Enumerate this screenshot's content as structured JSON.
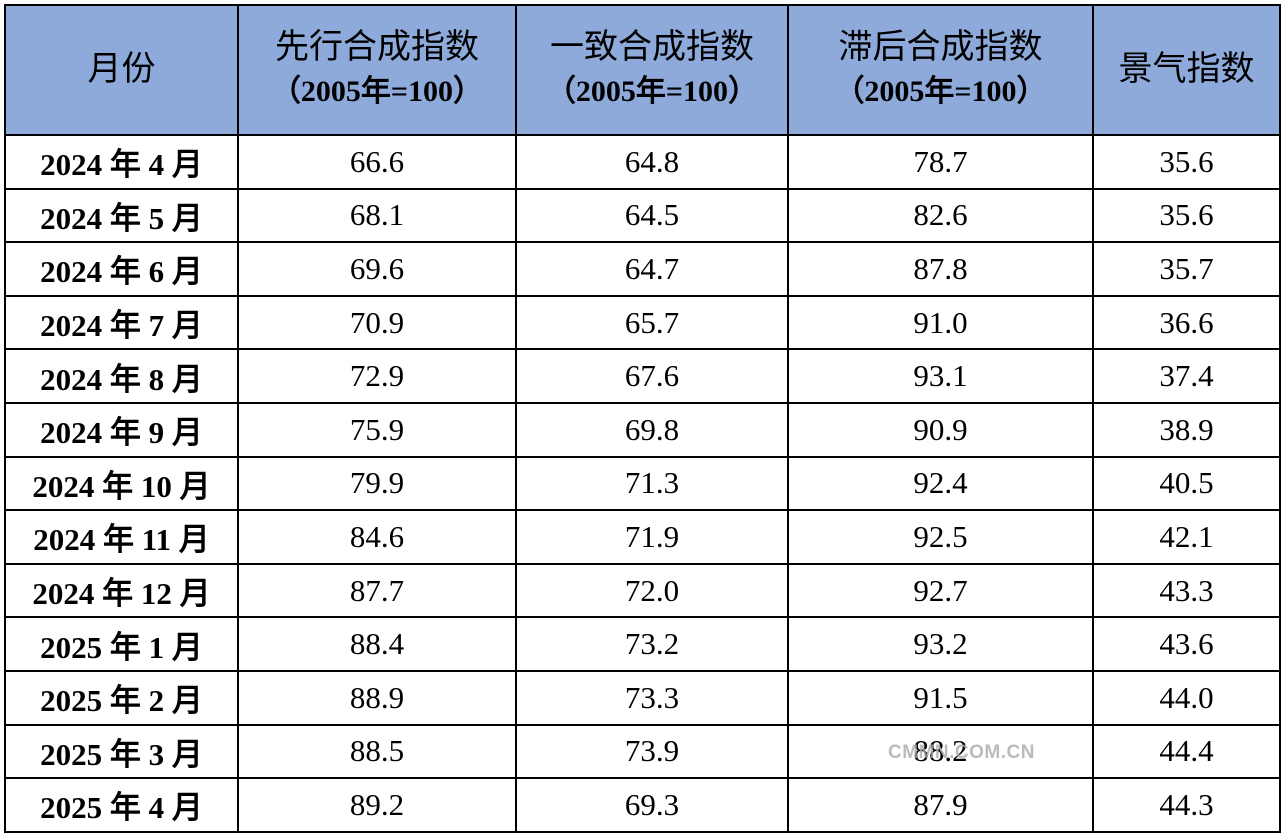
{
  "table": {
    "header": [
      [
        "月份"
      ],
      [
        "先行合成指数",
        "（2005年=100）"
      ],
      [
        "一致合成指数",
        "（2005年=100）"
      ],
      [
        "滞后合成指数",
        "（2005年=100）"
      ],
      [
        "景气指数"
      ]
    ],
    "rows": [
      [
        "2024 年 4 月",
        "66.6",
        "64.8",
        "78.7",
        "35.6"
      ],
      [
        "2024 年 5 月",
        "68.1",
        "64.5",
        "82.6",
        "35.6"
      ],
      [
        "2024 年 6 月",
        "69.6",
        "64.7",
        "87.8",
        "35.7"
      ],
      [
        "2024 年 7 月",
        "70.9",
        "65.7",
        "91.0",
        "36.6"
      ],
      [
        "2024 年 8 月",
        "72.9",
        "67.6",
        "93.1",
        "37.4"
      ],
      [
        "2024 年 9 月",
        "75.9",
        "69.8",
        "90.9",
        "38.9"
      ],
      [
        "2024 年 10 月",
        "79.9",
        "71.3",
        "92.4",
        "40.5"
      ],
      [
        "2024 年 11 月",
        "84.6",
        "71.9",
        "92.5",
        "42.1"
      ],
      [
        "2024 年 12 月",
        "87.7",
        "72.0",
        "92.7",
        "43.3"
      ],
      [
        "2025 年 1 月",
        "88.4",
        "73.2",
        "93.2",
        "43.6"
      ],
      [
        "2025 年 2 月",
        "88.9",
        "73.3",
        "91.5",
        "44.0"
      ],
      [
        "2025 年 3 月",
        "88.5",
        "73.9",
        "88.2",
        "44.4"
      ],
      [
        "2025 年 4 月",
        "89.2",
        "69.3",
        "87.9",
        "44.3"
      ]
    ]
  },
  "watermark": "CMMN.COM.CN"
}
